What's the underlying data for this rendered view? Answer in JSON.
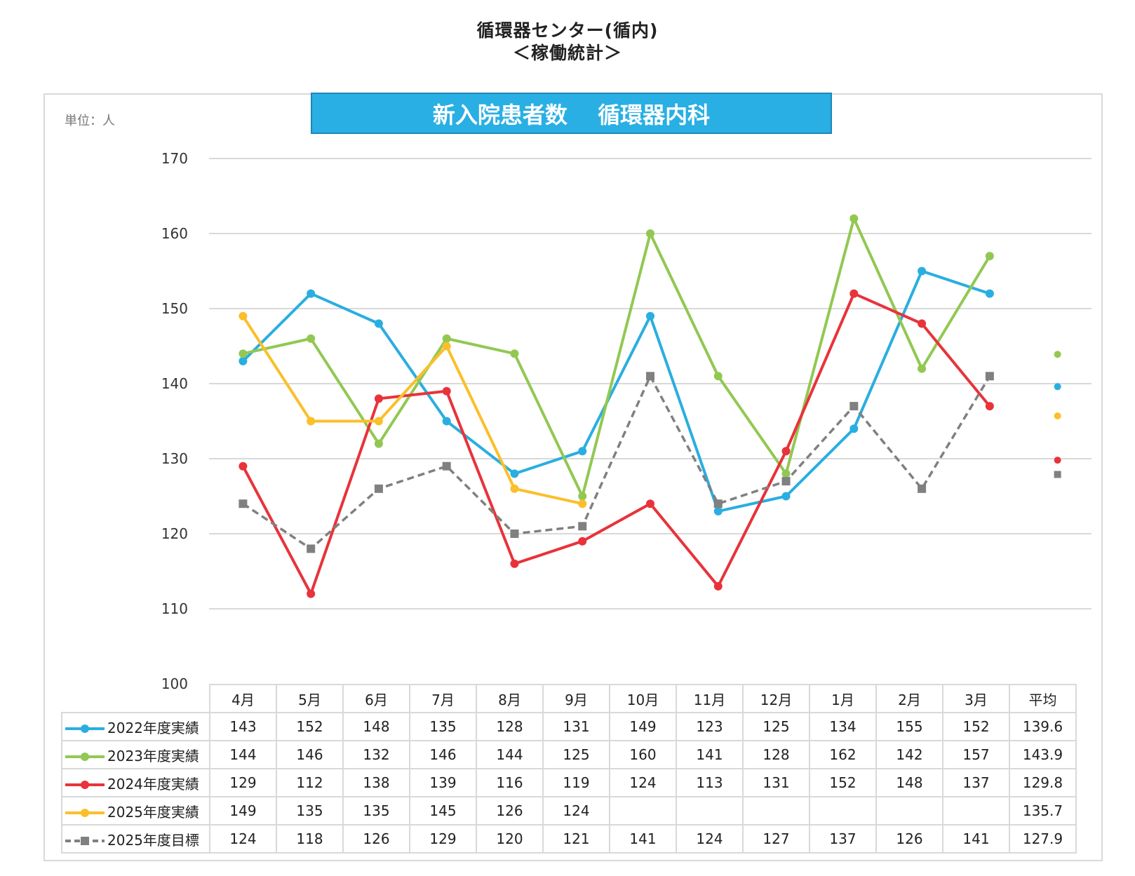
{
  "header": {
    "line1": "循環器センター(循内)",
    "line2": "＜稼働統計＞"
  },
  "chart_data": {
    "type": "line",
    "title": "新入院患者数　 循環器内科",
    "unit_label": "単位：人",
    "ylim": [
      100,
      170
    ],
    "yticks": [
      100,
      110,
      120,
      130,
      140,
      150,
      160,
      170
    ],
    "grid": true,
    "categories": [
      "4月",
      "5月",
      "6月",
      "7月",
      "8月",
      "9月",
      "10月",
      "11月",
      "12月",
      "1月",
      "2月",
      "3月"
    ],
    "average_label": "平均",
    "legend_placement": "table-left",
    "series": [
      {
        "name": "2022年度実績",
        "color": "#2aaee0",
        "values": [
          143,
          152,
          148,
          135,
          128,
          131,
          149,
          123,
          125,
          134,
          155,
          152
        ],
        "average": "139.6",
        "dashed": false
      },
      {
        "name": "2023年度実績",
        "color": "#92c852",
        "values": [
          144,
          146,
          132,
          146,
          144,
          125,
          160,
          141,
          128,
          162,
          142,
          157
        ],
        "average": "143.9",
        "dashed": false
      },
      {
        "name": "2024年度実績",
        "color": "#e8333a",
        "values": [
          129,
          112,
          138,
          139,
          116,
          119,
          124,
          113,
          131,
          152,
          148,
          137
        ],
        "average": "129.8",
        "dashed": false
      },
      {
        "name": "2025年度実績",
        "color": "#fbbf2a",
        "values": [
          149,
          135,
          135,
          145,
          126,
          124,
          null,
          null,
          null,
          null,
          null,
          null
        ],
        "average": "135.7",
        "dashed": false
      },
      {
        "name": "2025年度目標",
        "color": "#808080",
        "values": [
          124,
          118,
          126,
          129,
          120,
          121,
          141,
          124,
          127,
          137,
          126,
          141
        ],
        "average": "127.9",
        "dashed": true
      }
    ]
  }
}
